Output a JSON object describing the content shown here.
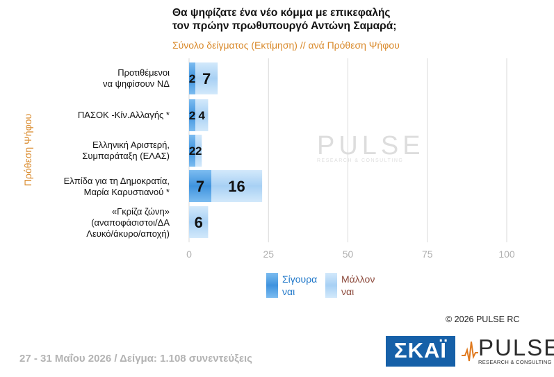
{
  "title_line1": "Θα ψηφίζατε ένα νέο κόμμα με επικεφαλής",
  "title_line2": "τον πρώην πρωθυπουργό Αντώνη Σαμαρά;",
  "subtitle": "Σύνολο δείγματος (Εκτίμηση) // ανά Πρόθεση Ψήφου",
  "ylabel": "Πρόθεση Ψήφου",
  "categories": [
    {
      "line1": "Προτιθέμενοι",
      "line2": "να ψηφίσουν ΝΔ",
      "line3": ""
    },
    {
      "line1": "ΠΑΣΟΚ -Κίν.Αλλαγής *",
      "line2": "",
      "line3": ""
    },
    {
      "line1": "Ελληνική Αριστερή,",
      "line2": "Συμπαράταξη (ΕΛΑΣ)",
      "line3": ""
    },
    {
      "line1": "Ελπίδα για τη Δημοκρατία,",
      "line2": "Μαρία Καρυστιανού *",
      "line3": ""
    },
    {
      "line1": "«Γκρίζα ζώνη»",
      "line2": "(αναποφάσιστοι/ΔΑ",
      "line3": "Λευκό/άκυρο/αποχή)"
    }
  ],
  "legend": [
    {
      "line1": "Σίγουρα",
      "line2": "ναι",
      "color": "#1f77c9"
    },
    {
      "line1": "Μάλλον",
      "line2": "ναι",
      "color": "#8c4a3c"
    }
  ],
  "colors": {
    "sure": "#5aa4e6",
    "maybe": "#bcdcf7",
    "accent": "#d9892a"
  },
  "copyright": "© 2026 PULSE RC",
  "footer": "27 - 31 Μαΐου 2026 / Δείγμα: 1.108 συνεντεύξεις",
  "skai_logo": "ΣΚΑΪ",
  "pulse_logo": {
    "name": "PULSE",
    "sub": "RESEARCH & CONSULTING"
  },
  "watermark": {
    "name": "PULSE",
    "sub": "RESEARCH & CONSULTING"
  },
  "chart_data": {
    "type": "bar",
    "orientation": "horizontal",
    "stacked": true,
    "categories": [
      "Προτιθέμενοι να ψηφίσουν ΝΔ",
      "ΠΑΣΟΚ -Κίν.Αλλαγής *",
      "Ελληνική Αριστερή, Συμπαράταξη (ΕΛΑΣ)",
      "Ελπίδα για τη Δημοκρατία, Μαρία Καρυστιανού *",
      "«Γκρίζα ζώνη» (αναποφάσιστοι/ΔΑ Λευκό/άκυρο/αποχή)"
    ],
    "series": [
      {
        "name": "Σίγουρα ναι",
        "values": [
          2,
          2,
          2,
          7,
          0
        ],
        "labels": [
          "2",
          "2",
          "2",
          "7",
          ""
        ]
      },
      {
        "name": "Μάλλον ναι",
        "values": [
          7,
          4,
          2,
          16,
          6
        ],
        "labels": [
          "7",
          "4",
          "2",
          "16",
          "6"
        ]
      }
    ],
    "xlim": [
      0,
      100
    ],
    "xticks": [
      "0",
      "25",
      "50",
      "75",
      "100"
    ],
    "grid": true
  }
}
